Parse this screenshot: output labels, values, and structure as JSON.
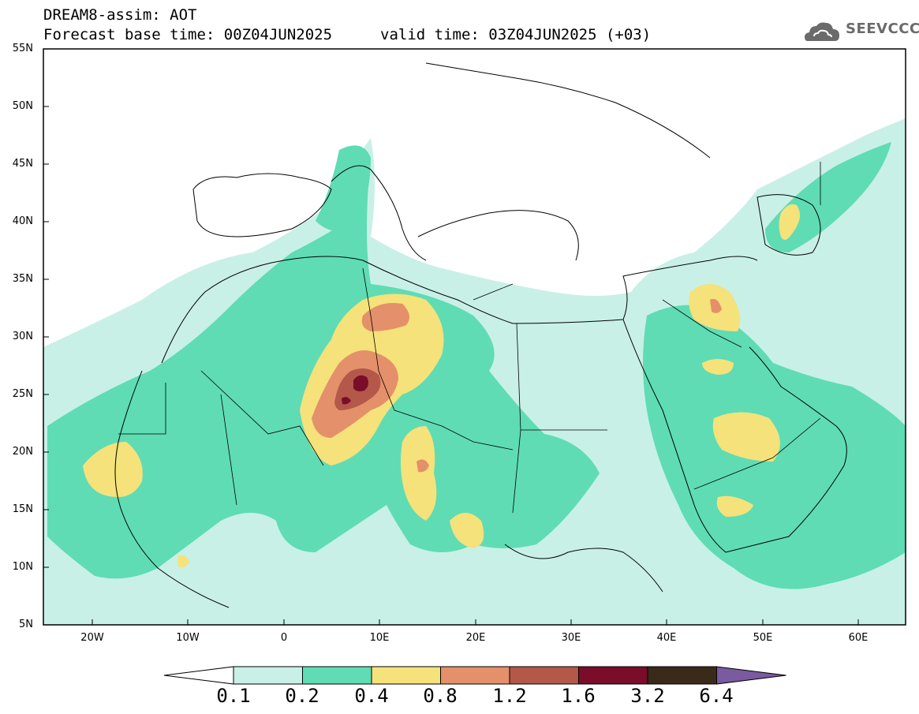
{
  "header": {
    "title": "DREAM8-assim: AOT",
    "base_time": "Forecast base time: 00Z04JUN2025",
    "valid_time": "valid time: 03Z04JUN2025 (+03)"
  },
  "logo": {
    "text": "SEEVCCC",
    "icon": "cloud-icon"
  },
  "axes": {
    "lat_ticks": [
      "55N",
      "50N",
      "45N",
      "40N",
      "35N",
      "30N",
      "25N",
      "20N",
      "15N",
      "10N",
      "5N"
    ],
    "lon_ticks": [
      "20W",
      "10W",
      "0",
      "10E",
      "20E",
      "30E",
      "40E",
      "50E",
      "60E"
    ]
  },
  "colorbar": {
    "labels": [
      "0.1",
      "0.2",
      "0.4",
      "0.8",
      "1.2",
      "1.6",
      "3.2",
      "6.4"
    ],
    "colors": [
      "#ffffff",
      "#c8f0e6",
      "#5fdcb4",
      "#f5e27a",
      "#e4906a",
      "#b4584a",
      "#7a0d2a",
      "#3a2a1a",
      "#7a5aa0"
    ]
  }
}
